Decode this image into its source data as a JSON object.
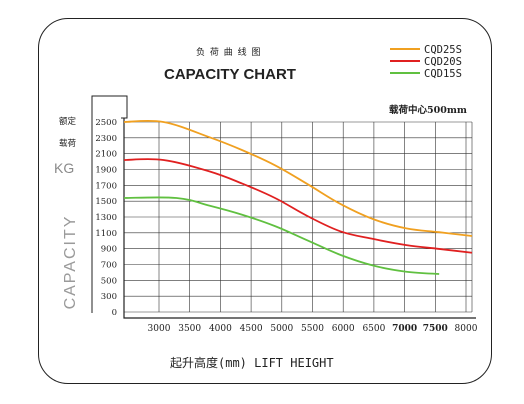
{
  "chart_data": {
    "type": "line",
    "title_cn": "负 荷 曲 线 图",
    "title": "CAPACITY CHART",
    "load_center": "载荷中心500mm",
    "ylabel_cn_1": "额定",
    "ylabel_cn_2": "载荷",
    "ylabel_unit": "KG",
    "ylabel": "CAPACITY",
    "xlabel": "起升高度(mm)  LIFT HEIGHT",
    "x_ticks": [
      "3000",
      "3500",
      "4000",
      "4500",
      "5000",
      "5500",
      "6000",
      "6500",
      "7000",
      "7500",
      "8000"
    ],
    "x_ticks_bold": [
      "7000",
      "7500"
    ],
    "y_ticks": [
      "2500",
      "2300",
      "2100",
      "1900",
      "1700",
      "1500",
      "1300",
      "1100",
      "900",
      "700",
      "500",
      "300",
      "0"
    ],
    "legend_position": "top-right",
    "grid": true,
    "series": [
      {
        "name": "CQD25S",
        "color": "#f0a020",
        "points": [
          [
            2700,
            2500
          ],
          [
            3300,
            2500
          ],
          [
            4000,
            2300
          ],
          [
            4500,
            2130
          ],
          [
            5000,
            1930
          ],
          [
            5500,
            1680
          ],
          [
            6000,
            1420
          ],
          [
            6500,
            1220
          ],
          [
            7000,
            1100
          ],
          [
            7500,
            1050
          ],
          [
            8000,
            1000
          ]
        ]
      },
      {
        "name": "CQD20S",
        "color": "#e02020",
        "points": [
          [
            2700,
            2000
          ],
          [
            3300,
            2000
          ],
          [
            4000,
            1850
          ],
          [
            4500,
            1690
          ],
          [
            5000,
            1500
          ],
          [
            5500,
            1260
          ],
          [
            6000,
            1060
          ],
          [
            6500,
            960
          ],
          [
            7000,
            880
          ],
          [
            7500,
            830
          ],
          [
            8000,
            780
          ]
        ]
      },
      {
        "name": "CQD15S",
        "color": "#60c040",
        "points": [
          [
            2700,
            1500
          ],
          [
            3500,
            1500
          ],
          [
            4000,
            1400
          ],
          [
            4500,
            1280
          ],
          [
            5000,
            1130
          ],
          [
            5500,
            940
          ],
          [
            6000,
            750
          ],
          [
            6500,
            610
          ],
          [
            7000,
            530
          ],
          [
            7500,
            500
          ]
        ]
      }
    ]
  }
}
